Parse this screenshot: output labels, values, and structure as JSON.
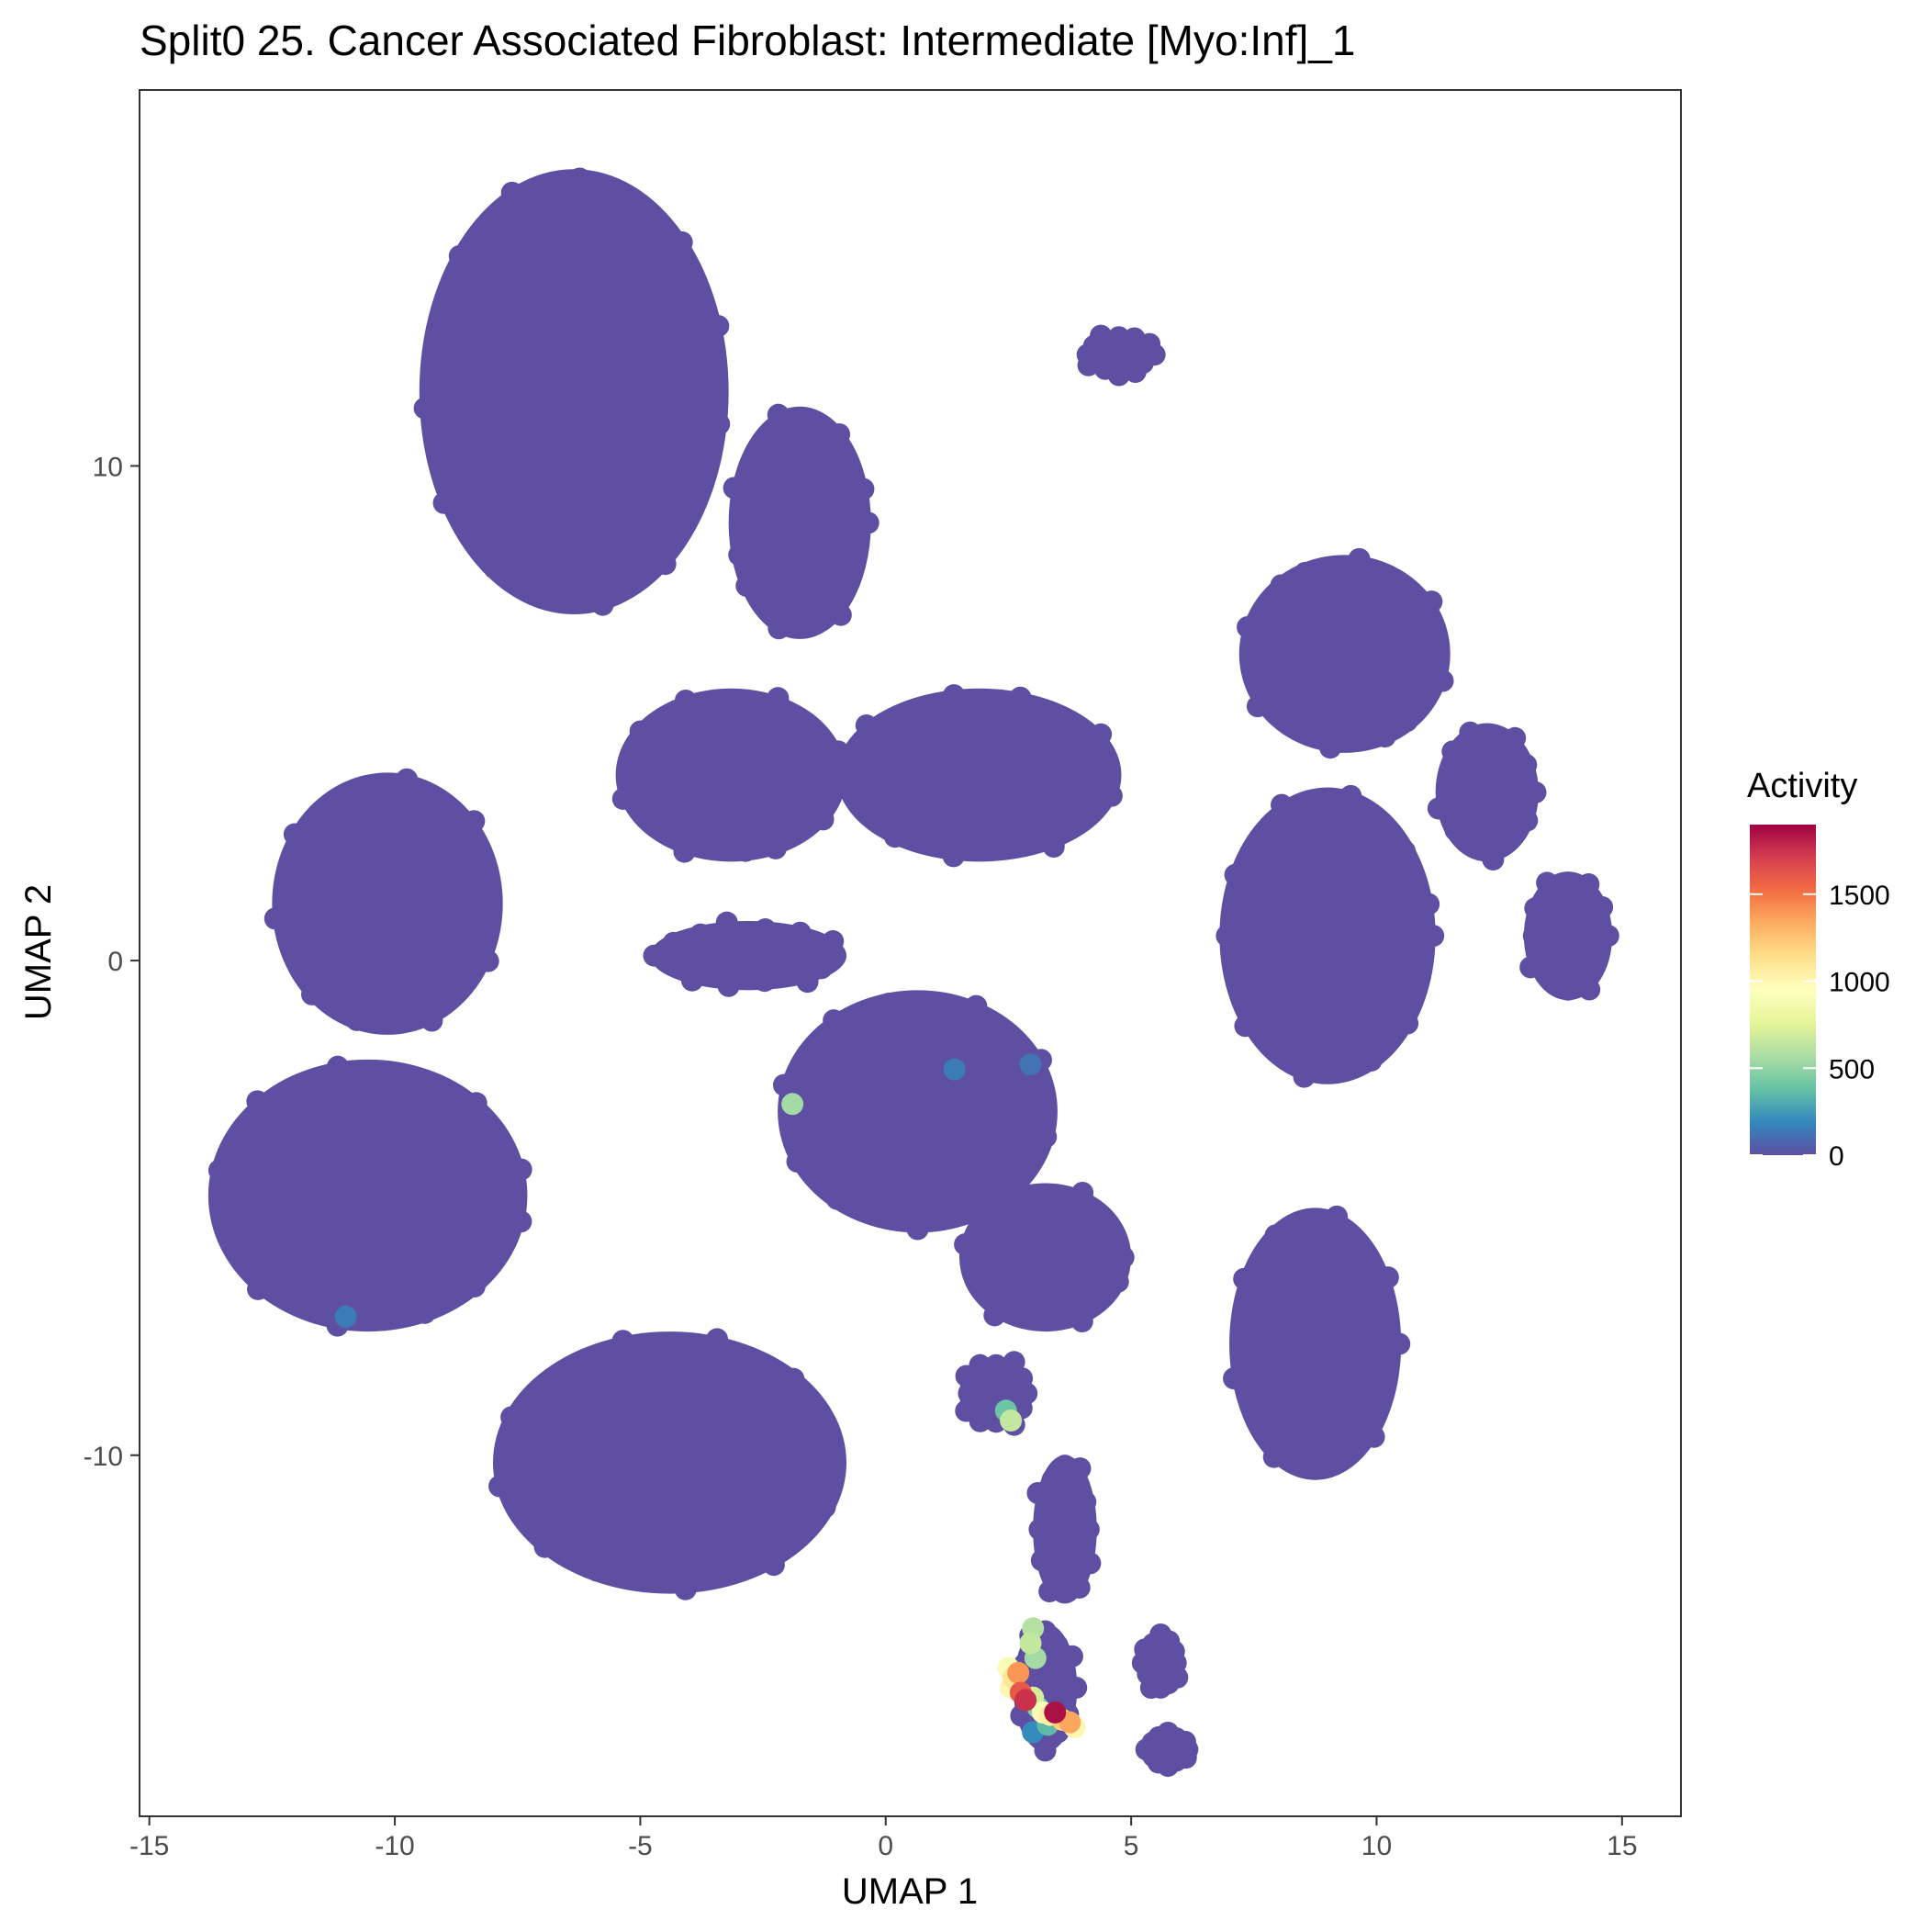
{
  "chart_data": {
    "type": "scatter",
    "title": "Split0 25. Cancer Associated Fibroblast: Intermediate [Myo:Inf]_1",
    "xlabel": "UMAP 1",
    "ylabel": "UMAP 2",
    "xlim": [
      -15.2,
      16.2
    ],
    "ylim": [
      -17.3,
      17.6
    ],
    "x_ticks": [
      -15,
      -10,
      -5,
      0,
      5,
      10,
      15
    ],
    "y_ticks": [
      -10,
      0,
      10
    ],
    "grid": false,
    "legend": {
      "title": "Activity",
      "position": "right",
      "ticks": [
        0,
        500,
        1000,
        1500
      ],
      "range": [
        0,
        1900
      ],
      "colors": [
        "#5E4FA2",
        "#3288BD",
        "#66C2A5",
        "#ABDDA4",
        "#E6F598",
        "#FFFFBF",
        "#FEE08B",
        "#FDAE61",
        "#F46D43",
        "#D53E4F",
        "#9E0142"
      ]
    },
    "clusters": [
      {
        "x": [
          -9.5,
          -3.2
        ],
        "y": [
          7.0,
          16.0
        ],
        "value": 0
      },
      {
        "x": [
          -3.2,
          -0.3
        ],
        "y": [
          6.5,
          11.2
        ],
        "value": 0
      },
      {
        "x": [
          4.0,
          5.5
        ],
        "y": [
          11.8,
          12.7
        ],
        "value": 0
      },
      {
        "x": [
          -12.5,
          -7.8
        ],
        "y": [
          -1.5,
          3.8
        ],
        "value": 0
      },
      {
        "x": [
          -5.5,
          -0.8
        ],
        "y": [
          2.0,
          5.5
        ],
        "value": 0
      },
      {
        "x": [
          -1.0,
          4.8
        ],
        "y": [
          2.0,
          5.5
        ],
        "value": 0
      },
      {
        "x": [
          7.2,
          11.5
        ],
        "y": [
          4.2,
          8.2
        ],
        "value": 0
      },
      {
        "x": [
          11.2,
          13.3
        ],
        "y": [
          2.0,
          4.8
        ],
        "value": 0
      },
      {
        "x": [
          6.8,
          11.2
        ],
        "y": [
          -2.5,
          3.5
        ],
        "value": 0
      },
      {
        "x": [
          13.0,
          14.8
        ],
        "y": [
          -0.8,
          1.8
        ],
        "value": 0
      },
      {
        "x": [
          -4.8,
          -0.8
        ],
        "y": [
          -0.6,
          0.8
        ],
        "value": 0
      },
      {
        "x": [
          -2.2,
          3.5
        ],
        "y": [
          -5.5,
          -0.6
        ],
        "value": 0
      },
      {
        "x": [
          -13.8,
          -7.3
        ],
        "y": [
          -7.5,
          -2.0
        ],
        "value": 0
      },
      {
        "x": [
          1.5,
          5.0
        ],
        "y": [
          -7.5,
          -4.5
        ],
        "value": 0
      },
      {
        "x": [
          7.0,
          10.5
        ],
        "y": [
          -10.5,
          -5.0
        ],
        "value": 0
      },
      {
        "x": [
          -8.0,
          -0.8
        ],
        "y": [
          -12.8,
          -7.5
        ],
        "value": 0
      },
      {
        "x": [
          1.5,
          3.0
        ],
        "y": [
          -9.5,
          -8.0
        ],
        "value": 0
      },
      {
        "x": [
          3.0,
          4.3
        ],
        "y": [
          -13.0,
          -10.0
        ],
        "value": 0
      },
      {
        "x": [
          5.2,
          6.0
        ],
        "y": [
          -14.8,
          -13.6
        ],
        "value": 0
      },
      {
        "x": [
          5.3,
          6.2
        ],
        "y": [
          -16.3,
          -15.6
        ],
        "value": 0
      },
      {
        "x": [
          2.6,
          3.9
        ],
        "y": [
          -16.0,
          -13.4
        ],
        "value": 0
      }
    ],
    "highlights": [
      {
        "x": -1.9,
        "y": -2.9,
        "value": 550
      },
      {
        "x": 1.4,
        "y": -2.2,
        "value": 150
      },
      {
        "x": 2.95,
        "y": -2.1,
        "value": 120
      },
      {
        "x": -11.0,
        "y": -7.2,
        "value": 150
      },
      {
        "x": 2.55,
        "y": -9.3,
        "value": 650
      },
      {
        "x": 2.45,
        "y": -9.1,
        "value": 400
      },
      {
        "x": 3.0,
        "y": -13.5,
        "value": 600
      },
      {
        "x": 2.95,
        "y": -13.8,
        "value": 650
      },
      {
        "x": 3.05,
        "y": -14.1,
        "value": 550
      },
      {
        "x": 2.5,
        "y": -14.3,
        "value": 900
      },
      {
        "x": 2.6,
        "y": -14.5,
        "value": 1100
      },
      {
        "x": 2.7,
        "y": -14.4,
        "value": 1400
      },
      {
        "x": 2.55,
        "y": -14.7,
        "value": 1000
      },
      {
        "x": 2.75,
        "y": -14.8,
        "value": 1600
      },
      {
        "x": 2.85,
        "y": -14.95,
        "value": 1750
      },
      {
        "x": 3.0,
        "y": -14.9,
        "value": 700
      },
      {
        "x": 3.1,
        "y": -15.1,
        "value": 450
      },
      {
        "x": 3.2,
        "y": -15.2,
        "value": 900
      },
      {
        "x": 3.35,
        "y": -15.25,
        "value": 1050
      },
      {
        "x": 3.45,
        "y": -15.2,
        "value": 1850
      },
      {
        "x": 3.6,
        "y": -15.35,
        "value": 1200
      },
      {
        "x": 3.75,
        "y": -15.4,
        "value": 1350
      },
      {
        "x": 3.85,
        "y": -15.5,
        "value": 1000
      },
      {
        "x": 3.3,
        "y": -15.45,
        "value": 350
      },
      {
        "x": 3.0,
        "y": -15.6,
        "value": 200
      }
    ]
  }
}
